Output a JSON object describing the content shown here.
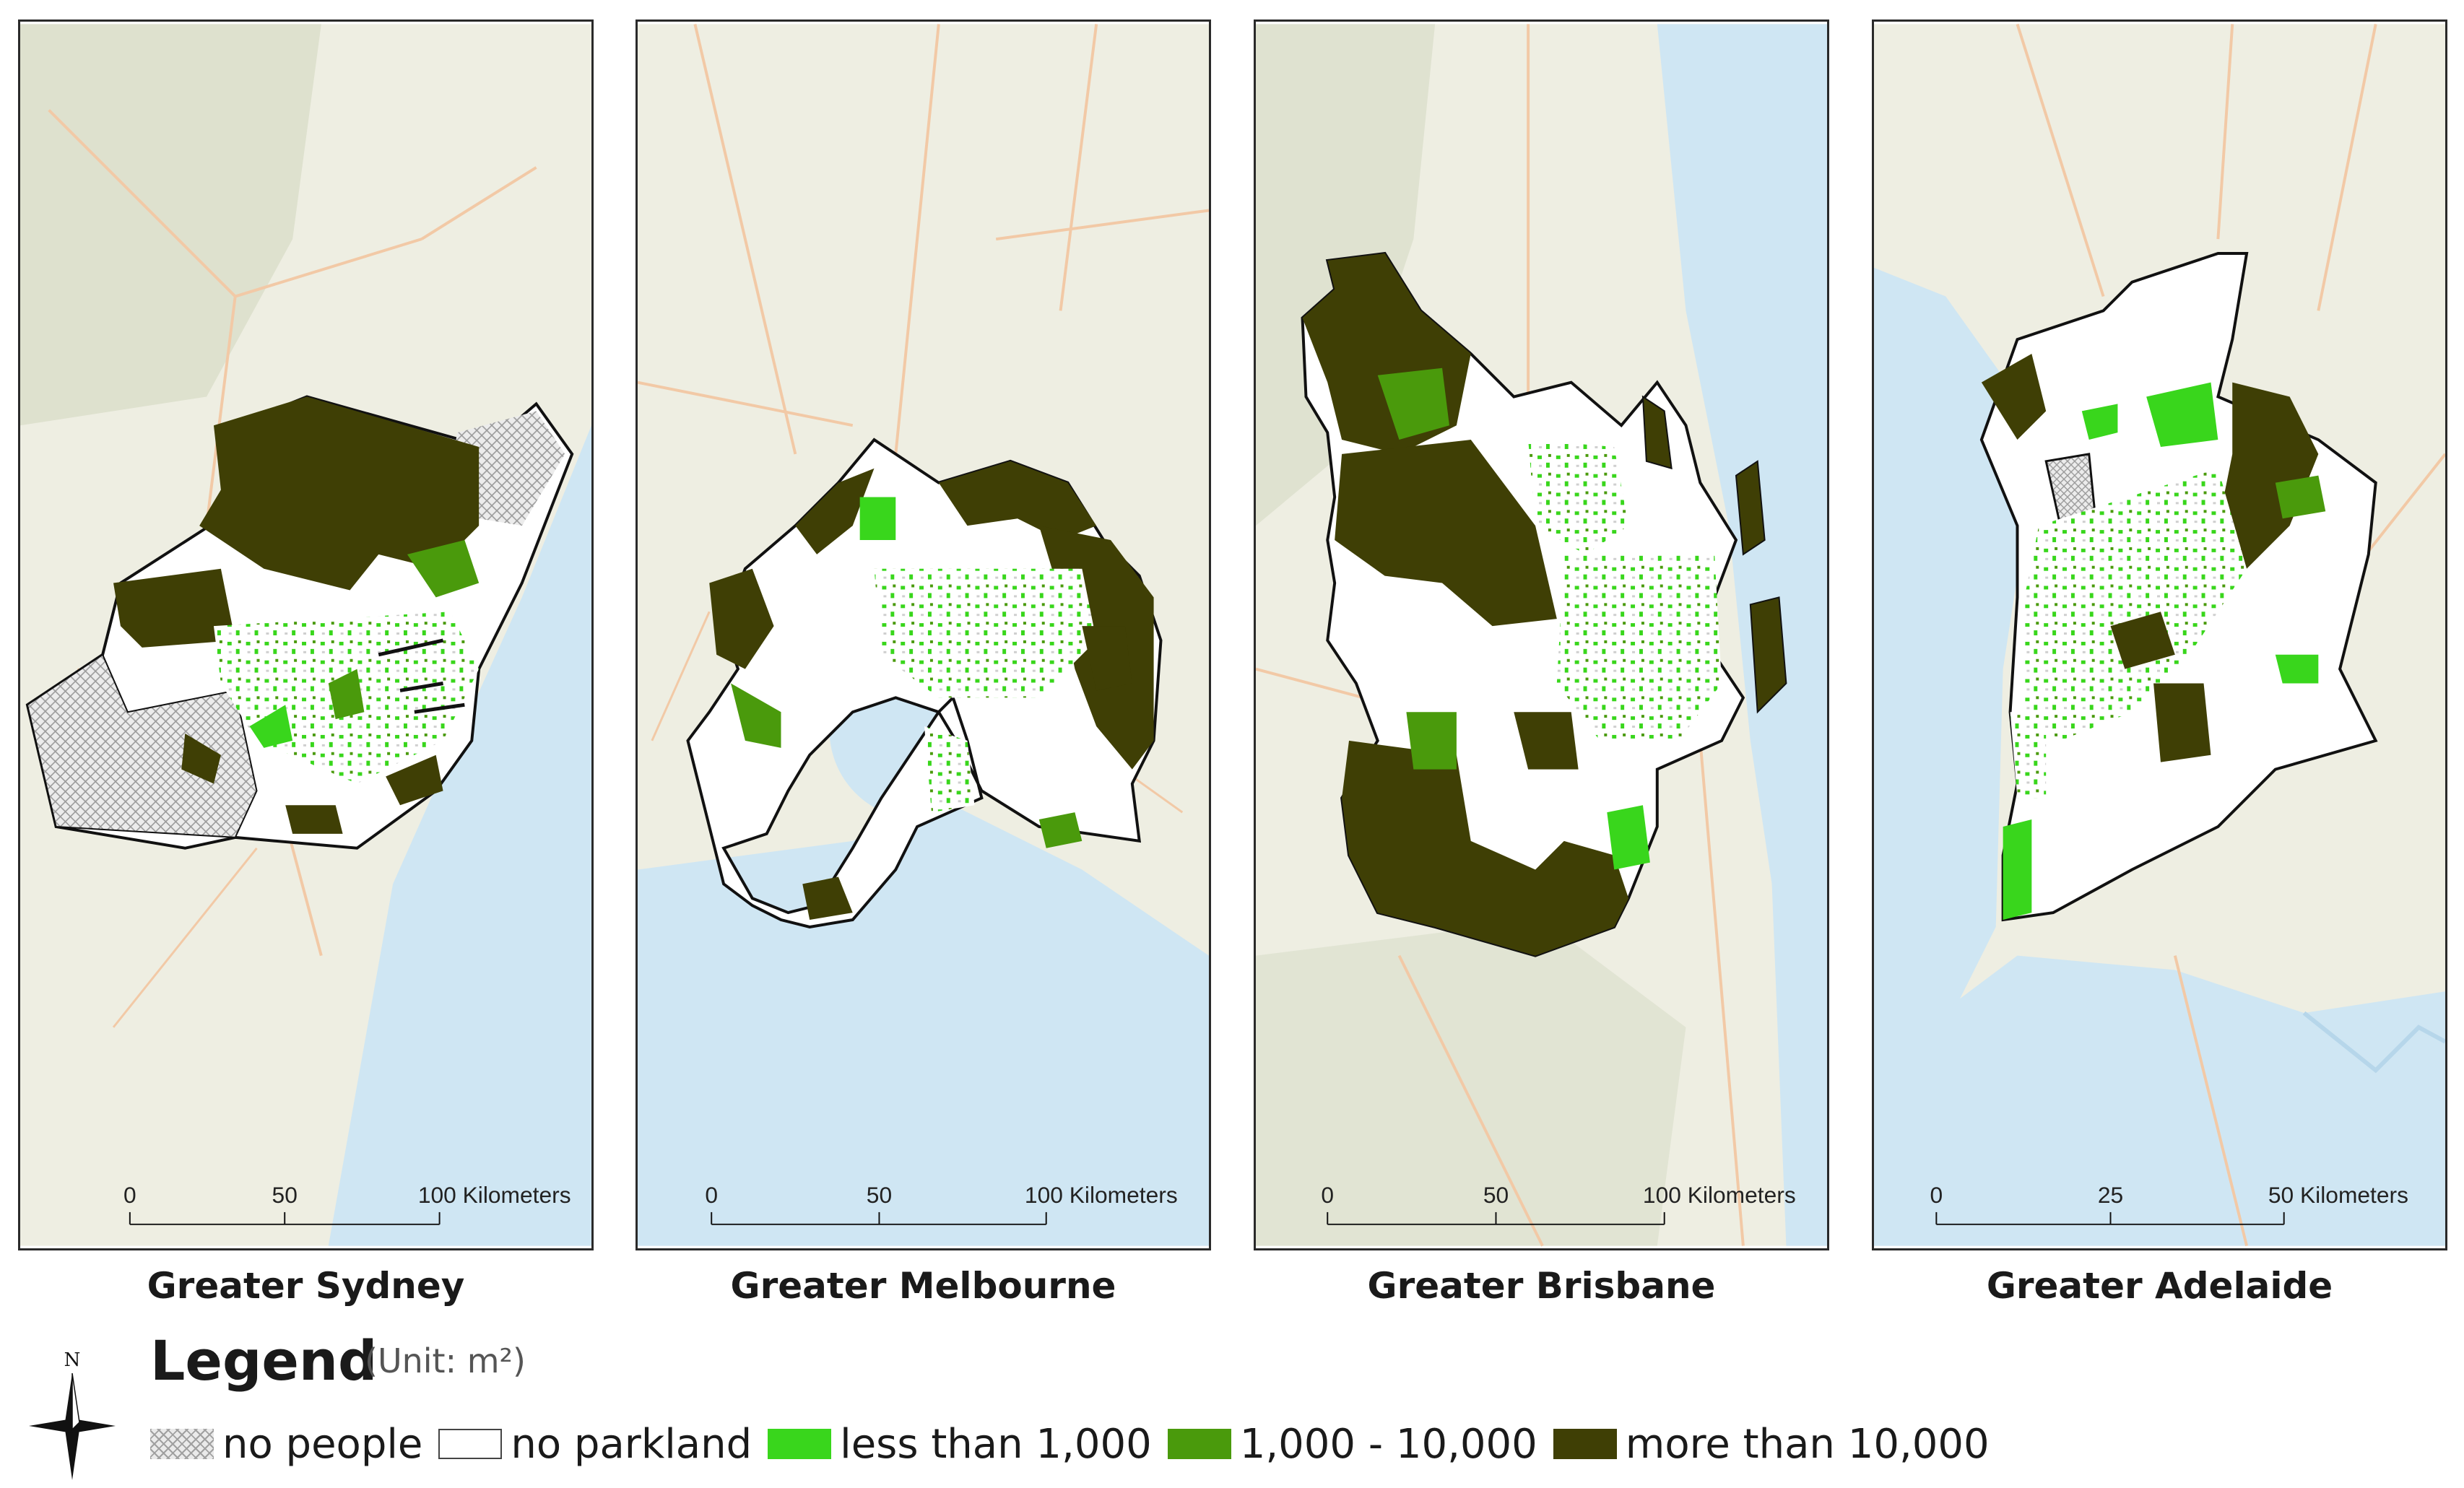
{
  "panels": [
    {
      "title": "Greater Sydney",
      "scale": {
        "ticks": [
          "0",
          "50",
          "100 Kilometers"
        ]
      }
    },
    {
      "title": "Greater Melbourne",
      "scale": {
        "ticks": [
          "0",
          "50",
          "100 Kilometers"
        ]
      }
    },
    {
      "title": "Greater Brisbane",
      "scale": {
        "ticks": [
          "0",
          "50",
          "100 Kilometers"
        ]
      }
    },
    {
      "title": "Greater Adelaide",
      "scale": {
        "ticks": [
          "0",
          "25",
          "50 Kilometers"
        ]
      }
    }
  ],
  "legend": {
    "title": "Legend",
    "unit": "(Unit: m²)",
    "north_label": "N",
    "items": [
      {
        "label": "no people",
        "pattern": "crosshatch",
        "color": "#cfcfcf"
      },
      {
        "label": "no parkland",
        "color": "#ffffff"
      },
      {
        "label": "less than 1,000",
        "color": "#39d61c"
      },
      {
        "label": "1,000 - 10,000",
        "color": "#4a9a0c"
      },
      {
        "label": "more than 10,000",
        "color": "#3f3f05"
      }
    ]
  },
  "colors": {
    "land": "#eeeee2",
    "terrain": "#d9ddc9",
    "water": "#cfe6f3",
    "road": "#f2c9a6",
    "boundary": "#111111"
  }
}
